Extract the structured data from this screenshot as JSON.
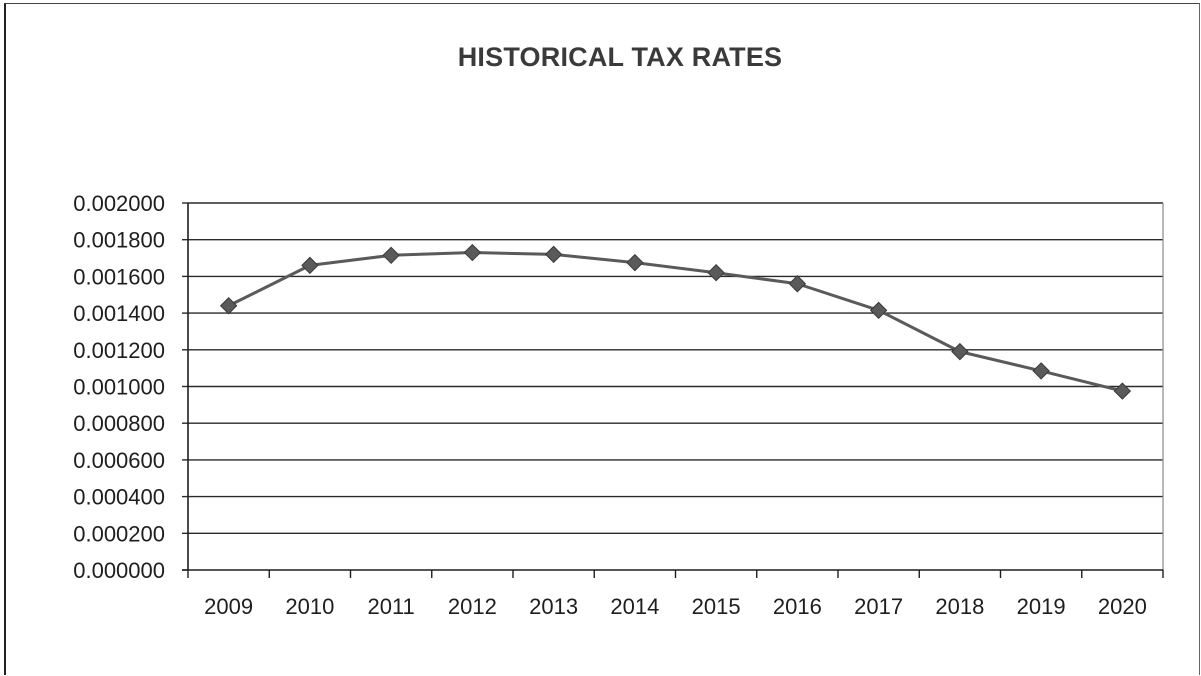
{
  "chart_data": {
    "type": "line",
    "title": "HISTORICAL TAX RATES",
    "xlabel": "",
    "ylabel": "",
    "categories": [
      "2009",
      "2010",
      "2011",
      "2012",
      "2013",
      "2014",
      "2015",
      "2016",
      "2017",
      "2018",
      "2019",
      "2020"
    ],
    "series": [
      {
        "values": [
          0.00144,
          0.00166,
          0.001715,
          0.00173,
          0.00172,
          0.001675,
          0.00162,
          0.00156,
          0.001415,
          0.00119,
          0.001085,
          0.000975
        ],
        "color": "#5a5a5a",
        "marker": "diamond"
      }
    ],
    "ylim": [
      0,
      0.002
    ],
    "y_ticks": [
      "0.002000",
      "0.001800",
      "0.001600",
      "0.001400",
      "0.001200",
      "0.001000",
      "0.000800",
      "0.000600",
      "0.000400",
      "0.000200",
      "0.000000"
    ],
    "grid": true,
    "legend": "none"
  }
}
